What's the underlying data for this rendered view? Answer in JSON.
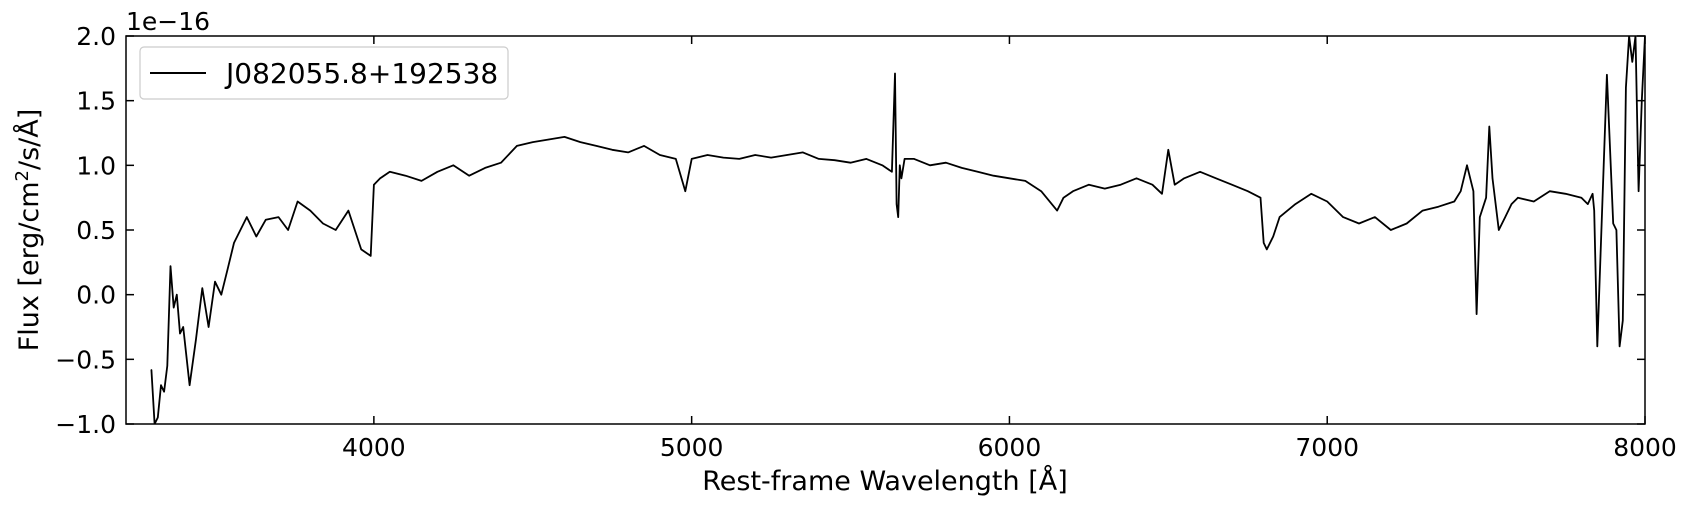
{
  "chart_data": {
    "type": "line",
    "title": "",
    "xlabel": "Rest-frame Wavelength [Å]",
    "ylabel_parts": [
      "Flux [erg/cm",
      "2",
      "/s/Å]"
    ],
    "offset_label": "1e−16",
    "xlim": [
      3220,
      8000
    ],
    "ylim": [
      -1.0,
      2.0
    ],
    "xticks": [
      4000,
      5000,
      6000,
      7000,
      8000
    ],
    "xtick_labels": [
      "4000",
      "5000",
      "6000",
      "7000",
      "8000"
    ],
    "yticks": [
      -1.0,
      -0.5,
      0.0,
      0.5,
      1.0,
      1.5,
      2.0
    ],
    "ytick_labels": [
      "−1.0",
      "−0.5",
      "0.0",
      "0.5",
      "1.0",
      "1.5",
      "2.0"
    ],
    "grid": false,
    "legend_position": "top-left",
    "line_color": "#000000",
    "series": [
      {
        "name": "J082055.8+192538",
        "x": [
          3300,
          3310,
          3320,
          3330,
          3340,
          3350,
          3360,
          3370,
          3380,
          3390,
          3400,
          3420,
          3440,
          3460,
          3480,
          3500,
          3520,
          3540,
          3560,
          3580,
          3600,
          3630,
          3660,
          3700,
          3730,
          3760,
          3800,
          3840,
          3880,
          3920,
          3960,
          3990,
          4000,
          4020,
          4050,
          4100,
          4150,
          4200,
          4250,
          4300,
          4350,
          4400,
          4450,
          4500,
          4550,
          4600,
          4650,
          4700,
          4750,
          4800,
          4850,
          4900,
          4950,
          4980,
          5000,
          5050,
          5100,
          5150,
          5200,
          5250,
          5300,
          5350,
          5400,
          5450,
          5500,
          5550,
          5600,
          5630,
          5640,
          5645,
          5650,
          5655,
          5660,
          5670,
          5700,
          5750,
          5800,
          5850,
          5900,
          5950,
          6000,
          6050,
          6100,
          6150,
          6170,
          6200,
          6250,
          6300,
          6350,
          6400,
          6450,
          6480,
          6500,
          6520,
          6550,
          6600,
          6650,
          6700,
          6750,
          6790,
          6800,
          6810,
          6830,
          6850,
          6900,
          6950,
          7000,
          7050,
          7100,
          7150,
          7200,
          7250,
          7300,
          7350,
          7400,
          7420,
          7440,
          7460,
          7470,
          7480,
          7500,
          7510,
          7520,
          7540,
          7560,
          7580,
          7600,
          7650,
          7700,
          7750,
          7800,
          7820,
          7835,
          7840,
          7850,
          7860,
          7870,
          7880,
          7900,
          7910,
          7920,
          7930,
          7940,
          7950,
          7960,
          7970,
          7980,
          7990,
          8000
        ],
        "values": [
          -0.58,
          -1.0,
          -0.95,
          -0.7,
          -0.75,
          -0.55,
          0.22,
          -0.1,
          0.0,
          -0.3,
          -0.25,
          -0.7,
          -0.35,
          0.05,
          -0.25,
          0.1,
          0.0,
          0.2,
          0.4,
          0.5,
          0.6,
          0.45,
          0.58,
          0.6,
          0.5,
          0.72,
          0.65,
          0.55,
          0.5,
          0.65,
          0.35,
          0.3,
          0.85,
          0.9,
          0.95,
          0.92,
          0.88,
          0.95,
          1.0,
          0.92,
          0.98,
          1.02,
          1.15,
          1.18,
          1.2,
          1.22,
          1.18,
          1.15,
          1.12,
          1.1,
          1.15,
          1.08,
          1.05,
          0.8,
          1.05,
          1.08,
          1.06,
          1.05,
          1.08,
          1.06,
          1.08,
          1.1,
          1.05,
          1.04,
          1.02,
          1.05,
          1.0,
          0.95,
          1.71,
          0.7,
          0.6,
          1.0,
          0.9,
          1.05,
          1.05,
          1.0,
          1.02,
          0.98,
          0.95,
          0.92,
          0.9,
          0.88,
          0.8,
          0.65,
          0.75,
          0.8,
          0.85,
          0.82,
          0.85,
          0.9,
          0.85,
          0.78,
          1.12,
          0.85,
          0.9,
          0.95,
          0.9,
          0.85,
          0.8,
          0.75,
          0.4,
          0.35,
          0.45,
          0.6,
          0.7,
          0.78,
          0.72,
          0.6,
          0.55,
          0.6,
          0.5,
          0.55,
          0.65,
          0.68,
          0.72,
          0.8,
          1.0,
          0.8,
          -0.15,
          0.6,
          0.75,
          1.3,
          0.9,
          0.5,
          0.6,
          0.7,
          0.75,
          0.72,
          0.8,
          0.78,
          0.75,
          0.7,
          0.78,
          0.65,
          -0.4,
          0.3,
          1.0,
          1.7,
          0.55,
          0.5,
          -0.4,
          -0.2,
          1.6,
          2.0,
          1.8,
          2.0,
          0.8,
          1.5,
          2.0
        ]
      }
    ]
  }
}
